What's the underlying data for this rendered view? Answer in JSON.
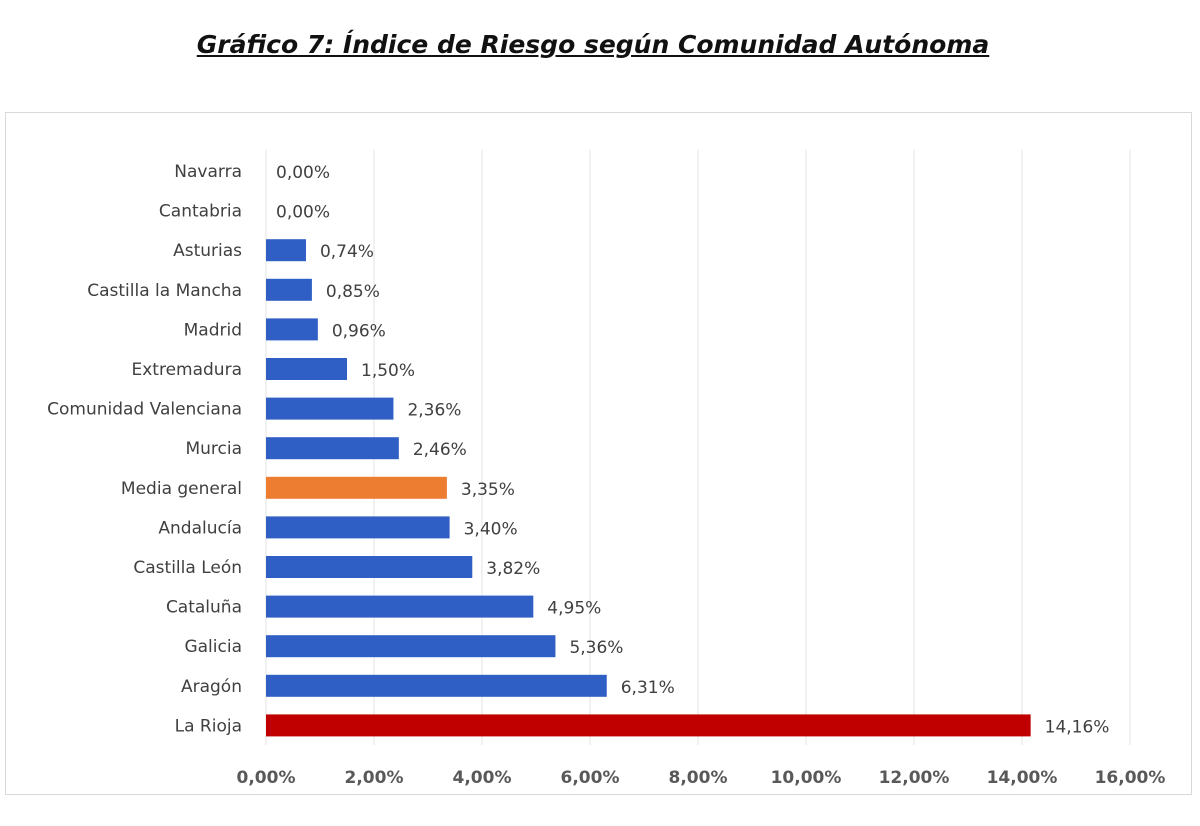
{
  "chart_data": {
    "type": "bar",
    "orientation": "horizontal",
    "title": "Gráfico 7: Índice de Riesgo según Comunidad Autónoma",
    "categories": [
      "Navarra",
      "Cantabria",
      "Asturias",
      "Castilla la Mancha",
      "Madrid",
      "Extremadura",
      "Comunidad Valenciana",
      "Murcia",
      "Media general",
      "Andalucía",
      "Castilla León",
      "Cataluña",
      "Galicia",
      "Aragón",
      "La Rioja"
    ],
    "values": [
      0.0,
      0.0,
      0.74,
      0.85,
      0.96,
      1.5,
      2.36,
      2.46,
      3.35,
      3.4,
      3.82,
      4.95,
      5.36,
      6.31,
      14.16
    ],
    "data_labels": [
      "0,00%",
      "0,00%",
      "0,74%",
      "0,85%",
      "0,96%",
      "1,50%",
      "2,36%",
      "2,46%",
      "3,35%",
      "3,40%",
      "3,82%",
      "4,95%",
      "5,36%",
      "6,31%",
      "14,16%"
    ],
    "bar_colors": [
      "#2f5fc4",
      "#2f5fc4",
      "#2f5fc4",
      "#2f5fc4",
      "#2f5fc4",
      "#2f5fc4",
      "#2f5fc4",
      "#2f5fc4",
      "#ed7d31",
      "#2f5fc4",
      "#2f5fc4",
      "#2f5fc4",
      "#2f5fc4",
      "#2f5fc4",
      "#c00000"
    ],
    "xlim": [
      0,
      16
    ],
    "xticks": [
      "0,00%",
      "2,00%",
      "4,00%",
      "6,00%",
      "8,00%",
      "10,00%",
      "12,00%",
      "14,00%",
      "16,00%"
    ],
    "xlabel": "",
    "ylabel": "",
    "grid": "vertical"
  }
}
